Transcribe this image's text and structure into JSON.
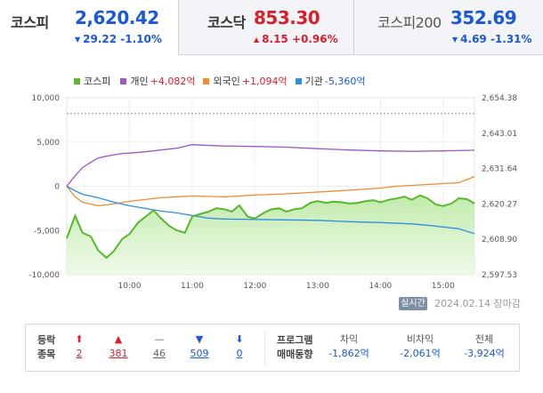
{
  "tabs": [
    {
      "name": "코스피",
      "value": "2,620.42",
      "change": "29.22 -1.10%",
      "dir": "down",
      "active": true
    },
    {
      "name": "코스닥",
      "value": "853.30",
      "change": "8.15 +0.96%",
      "dir": "up",
      "active": false
    },
    {
      "name": "코스피200",
      "value": "352.69",
      "change": "4.69 -1.31%",
      "dir": "down",
      "active": false
    }
  ],
  "legend": [
    {
      "label": "코스피",
      "value": "",
      "color": "#58b82b"
    },
    {
      "label": "개인",
      "value": "+4,082억",
      "color": "#9b59c6"
    },
    {
      "label": "외국인",
      "value": "+1,094억",
      "color": "#ef8a2e"
    },
    {
      "label": "기관",
      "value": "-5,360억",
      "color": "#2f8ee0"
    }
  ],
  "chart_data": {
    "type": "line",
    "x_ticks": [
      "10:00",
      "11:00",
      "12:00",
      "13:00",
      "14:00",
      "15:00"
    ],
    "left_axis": {
      "ticks": [
        "10,000",
        "5,000",
        "0",
        "-5,000",
        "-10,000"
      ],
      "range": [
        -10000,
        10000
      ]
    },
    "right_axis": {
      "ticks": [
        "2,654.38",
        "2,643.01",
        "2,631.64",
        "2,620.27",
        "2,608.90",
        "2,597.53"
      ],
      "range": [
        2597.53,
        2654.38
      ]
    },
    "reference_line": 8200,
    "series": [
      {
        "name": "코스피",
        "axis": "right",
        "color": "#58b82b",
        "x": [
          "09:00",
          "09:08",
          "09:15",
          "09:23",
          "09:30",
          "09:38",
          "09:45",
          "09:53",
          "10:00",
          "10:08",
          "10:15",
          "10:23",
          "10:30",
          "10:38",
          "10:45",
          "10:53",
          "11:00",
          "11:08",
          "11:15",
          "11:23",
          "11:30",
          "11:38",
          "11:45",
          "11:53",
          "12:00",
          "12:08",
          "12:15",
          "12:23",
          "12:30",
          "12:38",
          "12:45",
          "12:53",
          "13:00",
          "13:08",
          "13:15",
          "13:23",
          "13:30",
          "13:38",
          "13:45",
          "13:53",
          "14:00",
          "14:08",
          "14:15",
          "14:23",
          "14:30",
          "14:38",
          "14:45",
          "14:53",
          "15:00",
          "15:08",
          "15:15",
          "15:23",
          "15:30"
        ],
        "y": [
          2609.2,
          2616.5,
          2611.0,
          2609.8,
          2605.4,
          2603.0,
          2605.1,
          2609.0,
          2610.6,
          2614.2,
          2616.1,
          2618.2,
          2615.7,
          2613.2,
          2611.8,
          2611.0,
          2616.2,
          2617.1,
          2617.7,
          2618.9,
          2618.6,
          2617.8,
          2619.8,
          2616.2,
          2615.6,
          2617.3,
          2618.5,
          2618.9,
          2617.8,
          2618.6,
          2618.9,
          2620.6,
          2621.2,
          2620.6,
          2621.0,
          2620.8,
          2620.4,
          2620.6,
          2621.1,
          2621.5,
          2620.8,
          2621.6,
          2622.0,
          2622.6,
          2621.6,
          2623.0,
          2622.1,
          2620.1,
          2619.6,
          2620.4,
          2622.1,
          2621.8,
          2620.42
        ]
      },
      {
        "name": "개인",
        "axis": "left",
        "color": "#9b59c6",
        "x": [
          "09:00",
          "09:08",
          "09:15",
          "09:23",
          "09:30",
          "09:38",
          "09:45",
          "09:53",
          "10:00",
          "10:15",
          "10:30",
          "10:45",
          "11:00",
          "11:08",
          "11:30",
          "12:00",
          "12:30",
          "13:00",
          "13:30",
          "14:00",
          "14:30",
          "15:00",
          "15:30"
        ],
        "y": [
          0,
          1200,
          2100,
          2700,
          3200,
          3400,
          3550,
          3700,
          3750,
          3900,
          4100,
          4300,
          4700,
          4650,
          4550,
          4500,
          4420,
          4250,
          4100,
          4000,
          3950,
          4000,
          4082
        ]
      },
      {
        "name": "외국인",
        "axis": "left",
        "color": "#ef8a2e",
        "x": [
          "09:00",
          "09:08",
          "09:15",
          "09:30",
          "09:45",
          "10:00",
          "10:15",
          "10:30",
          "10:45",
          "11:00",
          "11:30",
          "12:00",
          "12:30",
          "13:00",
          "13:30",
          "14:00",
          "14:15",
          "14:30",
          "14:45",
          "15:00",
          "15:15",
          "15:30"
        ],
        "y": [
          0,
          -1200,
          -1800,
          -2200,
          -2000,
          -1700,
          -1500,
          -1300,
          -1200,
          -1100,
          -1200,
          -1000,
          -850,
          -650,
          -450,
          -200,
          0,
          100,
          200,
          300,
          400,
          1094
        ]
      },
      {
        "name": "기관",
        "axis": "left",
        "color": "#2f8ee0",
        "x": [
          "09:00",
          "09:08",
          "09:15",
          "09:30",
          "09:45",
          "10:00",
          "10:15",
          "10:30",
          "10:45",
          "11:00",
          "11:15",
          "11:30",
          "12:00",
          "12:30",
          "13:00",
          "13:30",
          "14:00",
          "14:30",
          "14:45",
          "15:00",
          "15:15",
          "15:30"
        ],
        "y": [
          0,
          -500,
          -900,
          -1300,
          -1800,
          -2200,
          -2500,
          -2800,
          -3000,
          -3300,
          -3600,
          -3700,
          -3750,
          -3800,
          -3850,
          -4000,
          -4100,
          -4250,
          -4400,
          -4600,
          -4800,
          -5360
        ]
      }
    ]
  },
  "status": {
    "badge": "실시간",
    "date": "2024.02.14 장마감"
  },
  "bottom": {
    "labels": {
      "a1": "등락",
      "a2": "종목",
      "b1": "프로그램",
      "b2": "매매동향"
    },
    "counts": [
      {
        "icon": "⬆",
        "value": "2",
        "color": "#d8202d",
        "icon_name": "upper-limit-arrow-icon"
      },
      {
        "icon": "▲",
        "value": "381",
        "color": "#d8202d",
        "icon_name": "rise-triangle-icon"
      },
      {
        "icon": "—",
        "value": "46",
        "color": "#666666",
        "icon_name": "flat-dash-icon"
      },
      {
        "icon": "▼",
        "value": "509",
        "color": "#1a58d6",
        "icon_name": "fall-triangle-icon"
      },
      {
        "icon": "⬇",
        "value": "0",
        "color": "#1a58d6",
        "icon_name": "lower-limit-arrow-icon"
      }
    ],
    "program": [
      {
        "header": "차익",
        "value": "-1,862억"
      },
      {
        "header": "비차익",
        "value": "-2,061억"
      },
      {
        "header": "전체",
        "value": "-3,924억"
      }
    ]
  }
}
